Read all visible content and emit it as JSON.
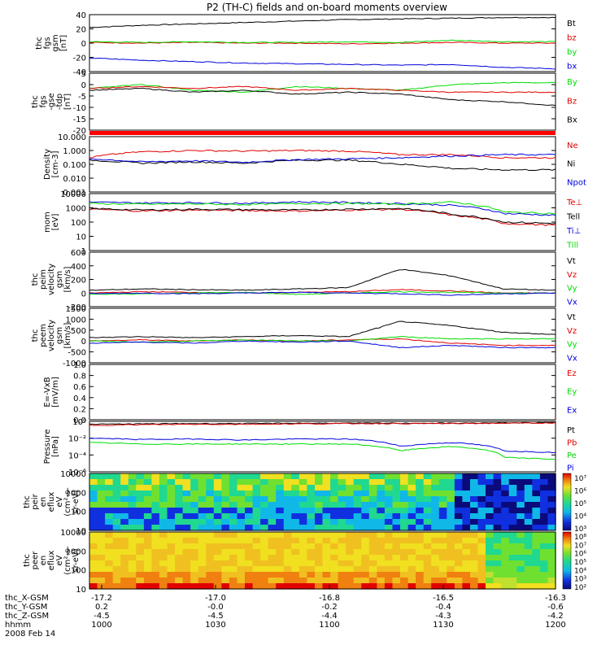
{
  "title": "P2 (TH-C) fields and on-board moments overview",
  "date_label": "2008 Feb 14",
  "ephemeris": {
    "rows": [
      {
        "label": "thc_X-GSM",
        "values": [
          "-17.2",
          "-17.0",
          "-16.8",
          "-16.5",
          "-16.3"
        ]
      },
      {
        "label": "thc_Y-GSM",
        "values": [
          "0.2",
          "-0.0",
          "-0.2",
          "-0.4",
          "-0.6"
        ]
      },
      {
        "label": "thc_Z-GSM",
        "values": [
          "-4.5",
          "-4.5",
          "-4.4",
          "-4.3",
          "-4.2"
        ]
      },
      {
        "label": "hhmm",
        "values": [
          "1000",
          "1030",
          "1100",
          "1130",
          "1200"
        ]
      }
    ]
  },
  "colors": {
    "black": "#000000",
    "red": "#e00000",
    "green": "#00dd00",
    "blue": "#0000dd"
  },
  "chart_data": [
    {
      "type": "line",
      "ylabel": [
        "thc",
        "fgs",
        "gsm",
        "[nT]"
      ],
      "ylim": [
        -40,
        40
      ],
      "ticks": [
        "40",
        "20",
        "0",
        "-20",
        "-40"
      ],
      "series": [
        {
          "name": "Bt",
          "color": "#000000",
          "values": [
            22,
            25,
            27,
            29,
            31,
            33,
            34,
            35,
            36,
            36
          ]
        },
        {
          "name": "bz",
          "color": "#e00000",
          "values": [
            1,
            0,
            1,
            0,
            0,
            -1,
            0,
            1,
            0,
            0
          ]
        },
        {
          "name": "by",
          "color": "#00dd00",
          "values": [
            2,
            1,
            2,
            1,
            1,
            2,
            1,
            4,
            2,
            2
          ]
        },
        {
          "name": "bx",
          "color": "#0000dd",
          "values": [
            -21,
            -24,
            -26,
            -28,
            -29,
            -30,
            -31,
            -30,
            -34,
            -36
          ]
        }
      ]
    },
    {
      "type": "line",
      "ylabel": [
        "thc",
        "fgs",
        "-gse",
        "-tdp",
        "[nT]"
      ],
      "ylim": [
        -22,
        8
      ],
      "ticks": [
        "5",
        "0",
        "-5",
        "-10",
        "-15",
        "-20"
      ],
      "series": [
        {
          "name": "By",
          "color": "#00dd00",
          "values": [
            0,
            2,
            -1,
            -2,
            1,
            0,
            -1,
            2,
            3,
            3
          ]
        },
        {
          "name": "Bz",
          "color": "#e00000",
          "values": [
            0,
            1,
            0,
            1,
            -1,
            0,
            -1,
            -2,
            -2,
            -2
          ]
        },
        {
          "name": "Bx",
          "color": "#000000",
          "values": [
            -1,
            0,
            -2,
            -1,
            -3,
            -2,
            -3,
            -6,
            -7,
            -9
          ]
        }
      ]
    },
    {
      "type": "line",
      "ylabel": [
        "Density",
        "[cm-3]"
      ],
      "log": true,
      "ylim": [
        0.001,
        10
      ],
      "ticks": [
        "10.000",
        "1.000",
        "0.100",
        "0.010",
        "0.001"
      ],
      "series": [
        {
          "name": "Ne",
          "color": "#e00000",
          "values": [
            0.3,
            0.8,
            1.0,
            0.9,
            1.0,
            0.9,
            0.5,
            0.5,
            0.3,
            0.3
          ]
        },
        {
          "name": "Ni",
          "color": "#000000",
          "values": [
            0.2,
            0.12,
            0.15,
            0.12,
            0.2,
            0.2,
            0.1,
            0.05,
            0.04,
            0.04
          ]
        },
        {
          "name": "Npot",
          "color": "#0000dd",
          "values": [
            0.25,
            0.15,
            0.18,
            0.14,
            0.22,
            0.25,
            0.3,
            0.4,
            0.5,
            0.5
          ]
        }
      ]
    },
    {
      "type": "line",
      "ylabel": [
        "mom",
        "[eV]"
      ],
      "log": true,
      "ylim": [
        1,
        10000
      ],
      "ticks": [
        "10000",
        "1000",
        "100",
        "10",
        "1"
      ],
      "series": [
        {
          "name": "Te⊥",
          "color": "#e00000",
          "values": [
            800,
            600,
            700,
            650,
            600,
            700,
            800,
            300,
            80,
            60
          ]
        },
        {
          "name": "Tell",
          "color": "#000000",
          "values": [
            900,
            700,
            800,
            750,
            700,
            800,
            900,
            350,
            100,
            80
          ]
        },
        {
          "name": "Ti⊥",
          "color": "#0000dd",
          "values": [
            2500,
            2200,
            2300,
            2100,
            2600,
            2400,
            2000,
            1500,
            400,
            300
          ]
        },
        {
          "name": "Till",
          "color": "#00dd00",
          "values": [
            2000,
            1800,
            1900,
            1700,
            2000,
            2000,
            1800,
            2500,
            500,
            400
          ]
        }
      ]
    },
    {
      "type": "line",
      "ylabel": [
        "thc",
        "peim",
        "velocity",
        "gsm",
        "[km/s]"
      ],
      "ylim": [
        -200,
        600
      ],
      "ticks": [
        "600",
        "400",
        "200",
        "0",
        "-200"
      ],
      "series": [
        {
          "name": "Vt",
          "color": "#000000",
          "values": [
            40,
            60,
            50,
            40,
            60,
            80,
            350,
            250,
            60,
            40
          ]
        },
        {
          "name": "Vz",
          "color": "#e00000",
          "values": [
            0,
            20,
            10,
            0,
            10,
            20,
            50,
            30,
            0,
            0
          ]
        },
        {
          "name": "Vy",
          "color": "#00dd00",
          "values": [
            -20,
            -10,
            0,
            10,
            -20,
            0,
            20,
            10,
            0,
            0
          ]
        },
        {
          "name": "Vx",
          "color": "#0000dd",
          "values": [
            -10,
            0,
            -10,
            0,
            10,
            0,
            -10,
            -30,
            -10,
            0
          ]
        }
      ]
    },
    {
      "type": "line",
      "ylabel": [
        "thc",
        "peem",
        "velocity",
        "gsm",
        "[km/s]"
      ],
      "ylim": [
        -1000,
        1500
      ],
      "ticks": [
        "1500",
        "1000",
        "500",
        "0",
        "-500",
        "-1000"
      ],
      "series": [
        {
          "name": "Vt",
          "color": "#000000",
          "values": [
            150,
            200,
            150,
            200,
            250,
            200,
            900,
            700,
            400,
            300
          ]
        },
        {
          "name": "Vz",
          "color": "#e00000",
          "values": [
            0,
            50,
            0,
            50,
            0,
            50,
            100,
            -100,
            -200,
            -200
          ]
        },
        {
          "name": "Vy",
          "color": "#00dd00",
          "values": [
            0,
            -50,
            0,
            50,
            0,
            0,
            200,
            100,
            100,
            100
          ]
        },
        {
          "name": "Vx",
          "color": "#0000dd",
          "values": [
            -100,
            -50,
            -100,
            0,
            -50,
            0,
            -300,
            -200,
            -300,
            -300
          ]
        }
      ]
    },
    {
      "type": "line",
      "ylabel": [
        "E=-VxB",
        "[mV/m]"
      ],
      "ylim": [
        0,
        1
      ],
      "ticks": [
        "1.0",
        "0.8",
        "0.6",
        "0.4",
        "0.2",
        "0.0"
      ],
      "series": [
        {
          "name": "Ez",
          "color": "#e00000",
          "values": []
        },
        {
          "name": "Ey",
          "color": "#00dd00",
          "values": []
        },
        {
          "name": "Ex",
          "color": "#0000dd",
          "values": []
        }
      ]
    },
    {
      "type": "line",
      "ylabel": [
        "Pressure",
        "[nPa]"
      ],
      "log": true,
      "ylim": [
        1e-06,
        1
      ],
      "ticks": [
        "10⁰",
        "10⁻²",
        "10⁻⁴",
        "10⁻⁶"
      ],
      "series": [
        {
          "name": "Pt",
          "color": "#000000",
          "values": [
            0.45,
            0.5,
            0.55,
            0.55,
            0.6,
            0.6,
            0.6,
            0.6,
            0.65,
            0.7
          ]
        },
        {
          "name": "Pb",
          "color": "#e00000",
          "values": [
            0.35,
            0.4,
            0.45,
            0.45,
            0.5,
            0.55,
            0.55,
            0.55,
            0.6,
            0.65
          ]
        },
        {
          "name": "Pe",
          "color": "#00dd00",
          "values": [
            0.003,
            0.002,
            0.002,
            0.002,
            0.002,
            0.002,
            0.0003,
            0.001,
            5e-05,
            3e-05
          ]
        },
        {
          "name": "Pi",
          "color": "#0000dd",
          "values": [
            0.01,
            0.007,
            0.008,
            0.006,
            0.008,
            0.008,
            0.001,
            0.003,
            0.0003,
            0.0002
          ]
        }
      ]
    },
    {
      "type": "heatmap",
      "ylabel": [
        "thc",
        "peir",
        "en",
        "eflux",
        "eV",
        "(cm²-s-",
        "sr-eV)"
      ],
      "ticks": [
        "10000",
        "1000",
        "100",
        "10"
      ],
      "colorbar": [
        "10⁷",
        "10⁶",
        "10⁵",
        "10⁴",
        "10³"
      ]
    },
    {
      "type": "heatmap",
      "ylabel": [
        "thc",
        "peer",
        "en",
        "eflux",
        "eV",
        "(cm²-s-",
        "sr-eV)"
      ],
      "ticks": [
        "10000",
        "1000",
        "100",
        "10"
      ],
      "colorbar": [
        "10⁸",
        "10⁷",
        "10⁶",
        "10⁵",
        "10⁴",
        "10³",
        "10²"
      ]
    }
  ]
}
